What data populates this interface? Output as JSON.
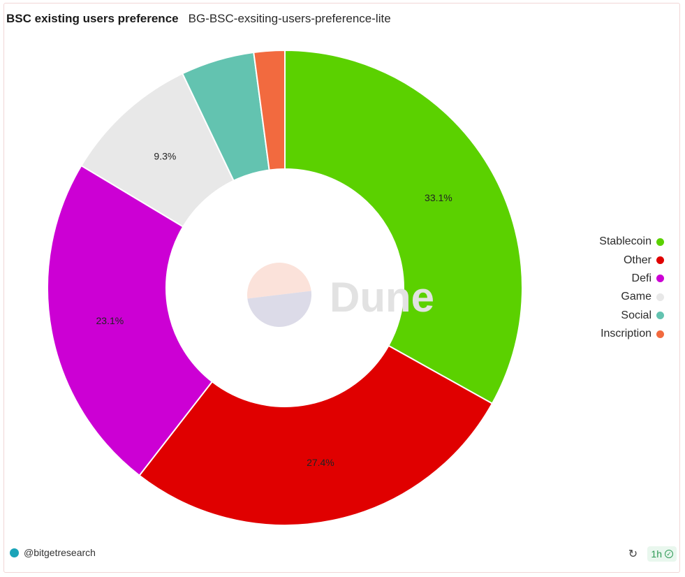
{
  "header": {
    "title": "BSC existing users preference",
    "subtitle": "BG-BSC-exsiting-users-preference-lite"
  },
  "watermark": {
    "text": "Dune",
    "logo_colors": [
      "#fbe2da",
      "#dcdbe8"
    ]
  },
  "chart_data": {
    "type": "pie",
    "donut": true,
    "legend_position": "right",
    "series": [
      {
        "name": "Stablecoin",
        "value": 33.1,
        "label": "33.1%",
        "color": "#5bd100"
      },
      {
        "name": "Other",
        "value": 27.4,
        "label": "27.4%",
        "color": "#e00000"
      },
      {
        "name": "Defi",
        "value": 23.1,
        "label": "23.1%",
        "color": "#cc00d4"
      },
      {
        "name": "Game",
        "value": 9.3,
        "label": "9.3%",
        "color": "#e8e8e8"
      },
      {
        "name": "Social",
        "value": 5.0,
        "label": "",
        "color": "#63c3b0"
      },
      {
        "name": "Inscription",
        "value": 2.1,
        "label": "",
        "color": "#f26a3f"
      }
    ]
  },
  "footer": {
    "author": "@bitgetresearch",
    "refresh_icon": "refresh-icon",
    "freshness": "1h",
    "freshness_icon": "check-circle-icon"
  }
}
